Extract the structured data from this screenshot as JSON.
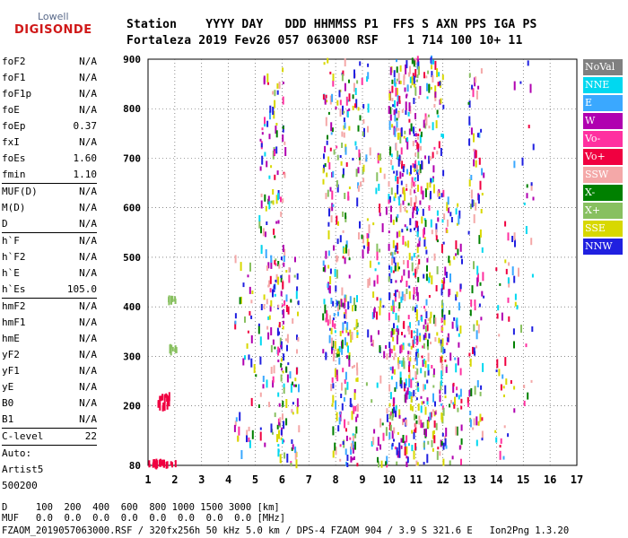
{
  "logo": {
    "line1": "Lowell",
    "line2": "DIGISONDE"
  },
  "header": {
    "labels_line": "Station    YYYY DAY   DDD HHMMSS P1  FFS S AXN PPS IGA PS",
    "values_line": "Fortaleza 2019 Fev26 057 063000 RSF    1 714 100 10+ 11"
  },
  "params": [
    {
      "name": "foF2",
      "value": "N/A"
    },
    {
      "name": "foF1",
      "value": "N/A"
    },
    {
      "name": "foF1p",
      "value": "N/A"
    },
    {
      "name": "foE",
      "value": "N/A"
    },
    {
      "name": "foEp",
      "value": "0.37"
    },
    {
      "name": "fxI",
      "value": "N/A"
    },
    {
      "name": "foEs",
      "value": "1.60"
    },
    {
      "name": "fmin",
      "value": "1.10"
    },
    {
      "sep": true
    },
    {
      "name": "MUF(D)",
      "value": "N/A"
    },
    {
      "name": "M(D)",
      "value": "N/A"
    },
    {
      "name": "D",
      "value": "N/A"
    },
    {
      "sep": true
    },
    {
      "name": "h`F",
      "value": "N/A"
    },
    {
      "name": "h`F2",
      "value": "N/A"
    },
    {
      "name": "h`E",
      "value": "N/A"
    },
    {
      "name": "h`Es",
      "value": "105.0"
    },
    {
      "sep": true
    },
    {
      "name": "hmF2",
      "value": "N/A"
    },
    {
      "name": "hmF1",
      "value": "N/A"
    },
    {
      "name": "hmE",
      "value": "N/A"
    },
    {
      "name": "yF2",
      "value": "N/A"
    },
    {
      "name": "yF1",
      "value": "N/A"
    },
    {
      "name": "yE",
      "value": "N/A"
    },
    {
      "name": "B0",
      "value": "N/A"
    },
    {
      "name": "B1",
      "value": "N/A"
    },
    {
      "sep": true
    },
    {
      "name": "C-level",
      "value": "22"
    },
    {
      "sep": true
    },
    {
      "name": "Auto:",
      "value": ""
    },
    {
      "name": "Artist5",
      "value": ""
    },
    {
      "name": "500200",
      "value": ""
    }
  ],
  "legend": [
    {
      "label": "NoVal",
      "color": "#808080"
    },
    {
      "label": "NNE",
      "color": "#00d8f0"
    },
    {
      "label": "E",
      "color": "#3aa8ff"
    },
    {
      "label": "W",
      "color": "#b000b0"
    },
    {
      "label": "Vo-",
      "color": "#ff30a0"
    },
    {
      "label": "Vo+",
      "color": "#f00040"
    },
    {
      "label": "SSW",
      "color": "#f4a8a8"
    },
    {
      "label": "X-",
      "color": "#008000"
    },
    {
      "label": "X+",
      "color": "#88c060"
    },
    {
      "label": "SSE",
      "color": "#d8d800"
    },
    {
      "label": "NNW",
      "color": "#2020e0"
    }
  ],
  "chart_data": {
    "type": "scatter",
    "xlim": [
      1,
      17
    ],
    "ylim": [
      80,
      900
    ],
    "x_ticks": [
      "1",
      "2",
      "3",
      "4",
      "5",
      "6",
      "7",
      "8",
      "9",
      "10",
      "11",
      "12",
      "13",
      "14",
      "15",
      "16",
      "17"
    ],
    "y_ticks": [
      "80",
      "200",
      "300",
      "400",
      "500",
      "600",
      "700",
      "800",
      "900"
    ],
    "grid": true,
    "clusters": [
      {
        "x": 1.5,
        "y": 82,
        "dx": 0.5,
        "dy": 4,
        "n": 40,
        "mode": "Vo+"
      },
      {
        "x": 1.6,
        "y": 210,
        "dx": 0.25,
        "dy": 15,
        "n": 20,
        "mode": "Vo+"
      },
      {
        "x": 1.9,
        "y": 315,
        "dx": 0.2,
        "dy": 5,
        "n": 10,
        "mode": "X+"
      },
      {
        "x": 1.8,
        "y": 415,
        "dx": 0.2,
        "dy": 4,
        "n": 8,
        "mode": "X+"
      },
      {
        "x": 4.6,
        "y": 300,
        "dx": 0.4,
        "dy": 200,
        "n": 40,
        "mode": "mix"
      },
      {
        "x": 5.6,
        "y": 500,
        "dx": 0.5,
        "dy": 380,
        "n": 160,
        "mode": "mix"
      },
      {
        "x": 6.2,
        "y": 300,
        "dx": 0.4,
        "dy": 220,
        "n": 90,
        "mode": "mix"
      },
      {
        "x": 8.0,
        "y": 600,
        "dx": 0.5,
        "dy": 300,
        "n": 160,
        "mode": "mix"
      },
      {
        "x": 8.3,
        "y": 250,
        "dx": 0.5,
        "dy": 170,
        "n": 120,
        "mode": "mix"
      },
      {
        "x": 8.9,
        "y": 700,
        "dx": 0.3,
        "dy": 200,
        "n": 50,
        "mode": "mix"
      },
      {
        "x": 9.5,
        "y": 400,
        "dx": 0.4,
        "dy": 320,
        "n": 70,
        "mode": "mix"
      },
      {
        "x": 10.5,
        "y": 490,
        "dx": 0.55,
        "dy": 410,
        "n": 420,
        "mode": "mix"
      },
      {
        "x": 11.5,
        "y": 490,
        "dx": 0.5,
        "dy": 410,
        "n": 260,
        "mode": "mix"
      },
      {
        "x": 12.3,
        "y": 350,
        "dx": 0.4,
        "dy": 270,
        "n": 100,
        "mode": "mix"
      },
      {
        "x": 13.2,
        "y": 500,
        "dx": 0.3,
        "dy": 380,
        "n": 90,
        "mode": "mix"
      },
      {
        "x": 14.3,
        "y": 350,
        "dx": 0.4,
        "dy": 270,
        "n": 40,
        "mode": "mix"
      },
      {
        "x": 15.0,
        "y": 550,
        "dx": 0.4,
        "dy": 350,
        "n": 30,
        "mode": "mix"
      }
    ]
  },
  "footer": {
    "line1": "D     100  200  400  600  800 1000 1500 3000 [km]",
    "line2": "MUF   0.0  0.0  0.0  0.0  0.0  0.0  0.0  0.0 [MHz]",
    "line3": "FZAOM_2019057063000.RSF / 320fx256h 50 kHz 5.0 km / DPS-4 FZAOM 904 / 3.9 S 321.6 E   Ion2Png 1.3.20"
  }
}
